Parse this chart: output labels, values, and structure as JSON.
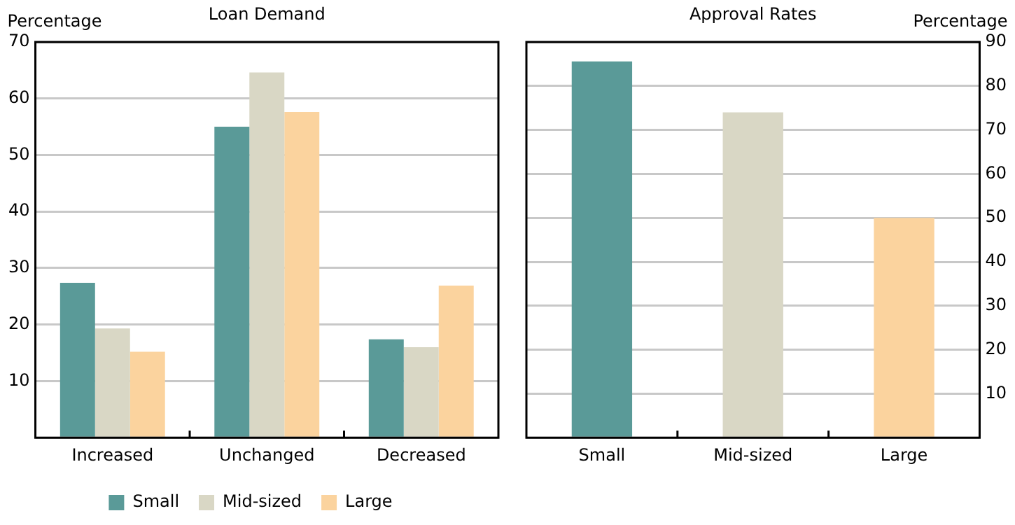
{
  "chart_data": [
    {
      "type": "bar",
      "title": "Loan Demand",
      "ylabel": "Percentage",
      "categories": [
        "Increased",
        "Unchanged",
        "Decreased"
      ],
      "series": [
        {
          "name": "Small",
          "color": "#5a9a98",
          "values": [
            27.4,
            55,
            17.4
          ]
        },
        {
          "name": "Mid-sized",
          "color": "#d9d7c5",
          "values": [
            19.3,
            64.6,
            16
          ]
        },
        {
          "name": "Large",
          "color": "#fbd39e",
          "values": [
            15.2,
            57.6,
            26.9
          ]
        }
      ],
      "ylim": [
        0,
        70
      ],
      "yticks": [
        {
          "value": 0,
          "label": null
        },
        10,
        20,
        30,
        40,
        50,
        60,
        70
      ],
      "grid": "y",
      "legend": "bottom"
    },
    {
      "type": "bar",
      "title": "Approval Rates",
      "y2label": "Percentage",
      "categories": [
        "Small",
        "Mid-sized",
        "Large"
      ],
      "series": [
        {
          "axis": "y2",
          "colors": [
            "#5a9a98",
            "#d9d7c5",
            "#fbd39e"
          ],
          "values": [
            85.6,
            74,
            50
          ]
        }
      ],
      "y2lim": [
        0,
        90
      ],
      "y2ticks": [
        {
          "value": 0,
          "label": null
        },
        10,
        20,
        30,
        40,
        50,
        60,
        70,
        80,
        90
      ],
      "grid": "y"
    }
  ]
}
